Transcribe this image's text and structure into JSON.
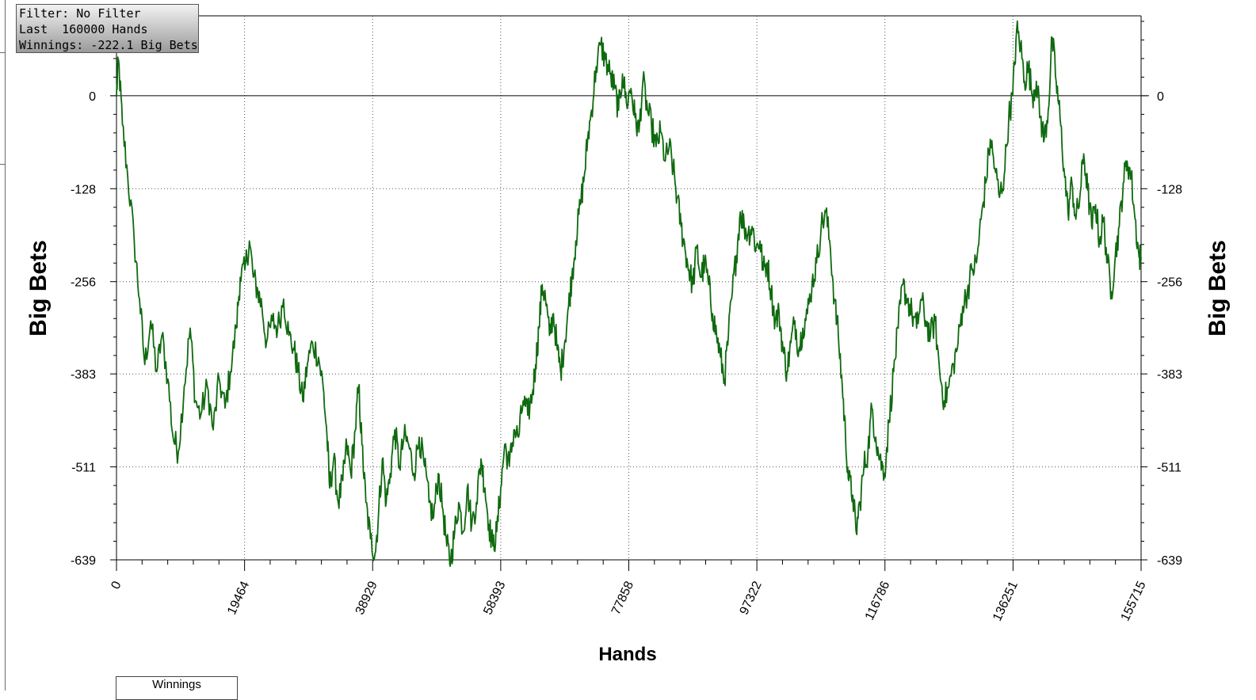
{
  "info_box": {
    "filter": "Filter: No Filter",
    "hands": "Last  160000 Hands",
    "winnings": "Winnings: -222.1 Big Bets"
  },
  "legend": {
    "label": "Winnings"
  },
  "colors": {
    "line": "#0f6a0f",
    "grid": "#555555",
    "axis": "#000000"
  },
  "chart_data": {
    "type": "line",
    "xlabel": "Hands",
    "ylabel": "Big Bets",
    "ylabel_right": "Big Bets",
    "xlim": [
      0,
      155715
    ],
    "ylim": [
      -639,
      110
    ],
    "x_ticks": [
      0,
      19464,
      38929,
      58393,
      77858,
      97322,
      116786,
      136251,
      155715
    ],
    "y_ticks": [
      0,
      -128,
      -256,
      -383,
      -511,
      -639
    ],
    "grid": true,
    "series": [
      {
        "values": [
          [
            0,
            0
          ],
          [
            300,
            50
          ],
          [
            900,
            -40
          ],
          [
            1700,
            -110
          ],
          [
            2700,
            -200
          ],
          [
            3500,
            -280
          ],
          [
            4300,
            -370
          ],
          [
            5200,
            -310
          ],
          [
            6100,
            -380
          ],
          [
            6900,
            -330
          ],
          [
            7800,
            -390
          ],
          [
            8600,
            -470
          ],
          [
            9400,
            -490
          ],
          [
            10300,
            -400
          ],
          [
            11200,
            -320
          ],
          [
            12000,
            -420
          ],
          [
            12800,
            -440
          ],
          [
            13800,
            -400
          ],
          [
            14700,
            -460
          ],
          [
            15600,
            -390
          ],
          [
            16500,
            -430
          ],
          [
            17300,
            -380
          ],
          [
            18200,
            -320
          ],
          [
            18800,
            -250
          ],
          [
            19500,
            -240
          ],
          [
            20200,
            -200
          ],
          [
            20800,
            -250
          ],
          [
            21500,
            -270
          ],
          [
            22100,
            -290
          ],
          [
            22800,
            -340
          ],
          [
            23700,
            -310
          ],
          [
            24500,
            -320
          ],
          [
            25400,
            -280
          ],
          [
            26200,
            -330
          ],
          [
            27000,
            -350
          ],
          [
            27600,
            -380
          ],
          [
            28300,
            -420
          ],
          [
            29000,
            -370
          ],
          [
            29800,
            -340
          ],
          [
            30700,
            -360
          ],
          [
            31400,
            -400
          ],
          [
            32000,
            -470
          ],
          [
            32400,
            -540
          ],
          [
            33000,
            -500
          ],
          [
            33700,
            -560
          ],
          [
            34400,
            -530
          ],
          [
            35000,
            -480
          ],
          [
            35600,
            -520
          ],
          [
            36300,
            -460
          ],
          [
            36800,
            -400
          ],
          [
            37300,
            -480
          ],
          [
            37900,
            -560
          ],
          [
            38600,
            -610
          ],
          [
            39300,
            -630
          ],
          [
            39800,
            -580
          ],
          [
            40400,
            -500
          ],
          [
            41000,
            -560
          ],
          [
            41600,
            -520
          ],
          [
            42300,
            -460
          ],
          [
            43000,
            -510
          ],
          [
            43700,
            -470
          ],
          [
            44400,
            -480
          ],
          [
            45200,
            -520
          ],
          [
            46000,
            -470
          ],
          [
            46800,
            -510
          ],
          [
            47500,
            -560
          ],
          [
            48200,
            -580
          ],
          [
            48900,
            -520
          ],
          [
            49600,
            -570
          ],
          [
            50200,
            -620
          ],
          [
            50800,
            -640
          ],
          [
            51400,
            -600
          ],
          [
            52000,
            -560
          ],
          [
            52700,
            -600
          ],
          [
            53300,
            -540
          ],
          [
            54000,
            -590
          ],
          [
            54700,
            -560
          ],
          [
            55400,
            -500
          ],
          [
            56000,
            -540
          ],
          [
            56600,
            -590
          ],
          [
            57200,
            -620
          ],
          [
            57800,
            -600
          ],
          [
            58400,
            -540
          ],
          [
            59000,
            -480
          ],
          [
            59700,
            -510
          ],
          [
            60400,
            -460
          ],
          [
            61100,
            -470
          ],
          [
            61800,
            -420
          ],
          [
            62500,
            -440
          ],
          [
            63200,
            -410
          ],
          [
            63700,
            -370
          ],
          [
            64200,
            -320
          ],
          [
            64700,
            -260
          ],
          [
            65200,
            -280
          ],
          [
            65800,
            -330
          ],
          [
            66400,
            -300
          ],
          [
            67000,
            -350
          ],
          [
            67500,
            -380
          ],
          [
            68100,
            -340
          ],
          [
            68700,
            -290
          ],
          [
            69200,
            -250
          ],
          [
            69800,
            -200
          ],
          [
            70500,
            -150
          ],
          [
            71100,
            -110
          ],
          [
            71600,
            -60
          ],
          [
            72200,
            -20
          ],
          [
            72900,
            40
          ],
          [
            73600,
            70
          ],
          [
            74300,
            50
          ],
          [
            75000,
            30
          ],
          [
            75700,
            10
          ],
          [
            76300,
            -20
          ],
          [
            76900,
            30
          ],
          [
            77500,
            -10
          ],
          [
            78200,
            10
          ],
          [
            78800,
            -30
          ],
          [
            79400,
            -50
          ],
          [
            80000,
            20
          ],
          [
            80700,
            -20
          ],
          [
            81300,
            -40
          ],
          [
            82000,
            -70
          ],
          [
            82700,
            -50
          ],
          [
            83400,
            -90
          ],
          [
            84000,
            -70
          ],
          [
            84600,
            -100
          ],
          [
            85200,
            -140
          ],
          [
            85800,
            -180
          ],
          [
            86400,
            -210
          ],
          [
            87000,
            -240
          ],
          [
            87600,
            -260
          ],
          [
            88200,
            -210
          ],
          [
            88800,
            -250
          ],
          [
            89400,
            -230
          ],
          [
            90000,
            -260
          ],
          [
            90600,
            -300
          ],
          [
            91200,
            -330
          ],
          [
            91800,
            -360
          ],
          [
            92400,
            -390
          ],
          [
            93000,
            -330
          ],
          [
            93600,
            -270
          ],
          [
            94200,
            -220
          ],
          [
            94800,
            -160
          ],
          [
            95400,
            -180
          ],
          [
            96000,
            -190
          ],
          [
            96600,
            -180
          ],
          [
            97200,
            -210
          ],
          [
            97800,
            -200
          ],
          [
            98300,
            -240
          ],
          [
            98900,
            -230
          ],
          [
            99500,
            -270
          ],
          [
            100100,
            -310
          ],
          [
            100700,
            -300
          ],
          [
            101300,
            -350
          ],
          [
            101900,
            -380
          ],
          [
            102500,
            -340
          ],
          [
            103100,
            -310
          ],
          [
            103700,
            -350
          ],
          [
            104300,
            -320
          ],
          [
            105000,
            -300
          ],
          [
            105700,
            -260
          ],
          [
            106400,
            -230
          ],
          [
            107100,
            -180
          ],
          [
            107800,
            -160
          ],
          [
            108500,
            -210
          ],
          [
            109100,
            -280
          ],
          [
            109700,
            -330
          ],
          [
            110300,
            -400
          ],
          [
            110800,
            -470
          ],
          [
            111300,
            -530
          ],
          [
            111900,
            -550
          ],
          [
            112400,
            -600
          ],
          [
            113000,
            -560
          ],
          [
            113600,
            -510
          ],
          [
            114200,
            -490
          ],
          [
            114800,
            -430
          ],
          [
            115400,
            -470
          ],
          [
            116000,
            -500
          ],
          [
            116700,
            -520
          ],
          [
            117400,
            -450
          ],
          [
            118100,
            -380
          ],
          [
            118800,
            -320
          ],
          [
            119500,
            -260
          ],
          [
            120200,
            -280
          ],
          [
            120900,
            -300
          ],
          [
            121600,
            -320
          ],
          [
            122300,
            -280
          ],
          [
            123000,
            -310
          ],
          [
            123700,
            -330
          ],
          [
            124400,
            -310
          ],
          [
            125100,
            -380
          ],
          [
            125800,
            -420
          ],
          [
            126500,
            -400
          ],
          [
            127200,
            -370
          ],
          [
            127900,
            -340
          ],
          [
            128600,
            -290
          ],
          [
            129300,
            -270
          ],
          [
            130000,
            -240
          ],
          [
            130700,
            -230
          ],
          [
            131400,
            -170
          ],
          [
            132100,
            -120
          ],
          [
            132800,
            -60
          ],
          [
            133500,
            -100
          ],
          [
            134200,
            -140
          ],
          [
            134900,
            -110
          ],
          [
            135600,
            -30
          ],
          [
            136200,
            0
          ],
          [
            136800,
            90
          ],
          [
            137400,
            70
          ],
          [
            138000,
            20
          ],
          [
            138600,
            40
          ],
          [
            139200,
            0
          ],
          [
            139800,
            20
          ],
          [
            140400,
            -30
          ],
          [
            141000,
            -60
          ],
          [
            141600,
            -20
          ],
          [
            142200,
            80
          ],
          [
            142800,
            20
          ],
          [
            143400,
            -30
          ],
          [
            144000,
            -100
          ],
          [
            144600,
            -160
          ],
          [
            145200,
            -120
          ],
          [
            145800,
            -170
          ],
          [
            146400,
            -140
          ],
          [
            147000,
            -80
          ],
          [
            147600,
            -130
          ],
          [
            148200,
            -180
          ],
          [
            148800,
            -150
          ],
          [
            149400,
            -200
          ],
          [
            150000,
            -170
          ],
          [
            150600,
            -230
          ],
          [
            151200,
            -270
          ],
          [
            151800,
            -220
          ],
          [
            152400,
            -180
          ],
          [
            153000,
            -120
          ],
          [
            153600,
            -90
          ],
          [
            154200,
            -110
          ],
          [
            154800,
            -170
          ],
          [
            155400,
            -222
          ],
          [
            155715,
            -222.1
          ]
        ]
      }
    ]
  }
}
